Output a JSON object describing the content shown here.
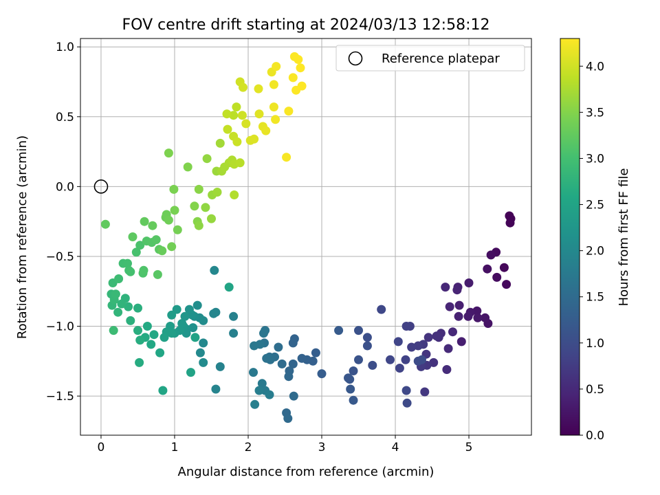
{
  "chart_data": {
    "type": "scatter",
    "title": "FOV centre drift starting at 2024/03/13 12:58:12",
    "xlabel": "Angular distance from reference (arcmin)",
    "ylabel": "Rotation from reference (arcmin)",
    "xlim": [
      -0.28,
      5.85
    ],
    "ylim": [
      -1.78,
      1.06
    ],
    "xticks": [
      0,
      1,
      2,
      3,
      4,
      5
    ],
    "yticks": [
      -1.5,
      -1.0,
      -0.5,
      0.0,
      0.5,
      1.0
    ],
    "xtick_labels": [
      "0",
      "1",
      "2",
      "3",
      "4",
      "5"
    ],
    "ytick_labels": [
      "−1.5",
      "−1.0",
      "−0.5",
      "0.0",
      "0.5",
      "1.0"
    ],
    "grid": true,
    "legend": {
      "position": "top-right",
      "label": "Reference platepar"
    },
    "reference_point": {
      "x": 0.0,
      "y": 0.0
    },
    "colorbar": {
      "label": "Hours from first FF file",
      "range": [
        0.0,
        4.3
      ],
      "ticks": [
        0.0,
        0.5,
        1.0,
        1.5,
        2.0,
        2.5,
        3.0,
        3.5,
        4.0
      ],
      "tick_labels": [
        "0.0",
        "0.5",
        "1.0",
        "1.5",
        "2.0",
        "2.5",
        "3.0",
        "3.5",
        "4.0"
      ],
      "colormap": [
        "#440154",
        "#482475",
        "#414487",
        "#355f8d",
        "#2a788e",
        "#21918c",
        "#22a884",
        "#44bf70",
        "#7ad151",
        "#bddf26",
        "#fde725"
      ]
    },
    "points": [
      [
        5.55,
        -0.21,
        0.02
      ],
      [
        5.57,
        -0.23,
        0.03
      ],
      [
        5.56,
        -0.26,
        0.04
      ],
      [
        5.48,
        -0.58,
        0.08
      ],
      [
        5.51,
        -0.7,
        0.1
      ],
      [
        5.37,
        -0.47,
        0.12
      ],
      [
        5.38,
        -0.65,
        0.14
      ],
      [
        5.3,
        -0.49,
        0.16
      ],
      [
        5.25,
        -0.59,
        0.18
      ],
      [
        5.26,
        -0.98,
        0.22
      ],
      [
        5.22,
        -0.94,
        0.24
      ],
      [
        5.11,
        -0.89,
        0.26
      ],
      [
        5.12,
        -0.94,
        0.28
      ],
      [
        5.02,
        -0.9,
        0.3
      ],
      [
        4.99,
        -0.93,
        0.32
      ],
      [
        5.0,
        -0.69,
        0.34
      ],
      [
        4.9,
        -1.11,
        0.36
      ],
      [
        4.87,
        -0.85,
        0.38
      ],
      [
        4.86,
        -0.93,
        0.4
      ],
      [
        4.85,
        -0.72,
        0.42
      ],
      [
        4.84,
        -0.74,
        0.44
      ],
      [
        4.74,
        -0.86,
        0.46
      ],
      [
        4.68,
        -0.72,
        0.48
      ],
      [
        4.78,
        -1.04,
        0.5
      ],
      [
        4.72,
        -1.16,
        0.52
      ],
      [
        4.7,
        -1.31,
        0.54
      ],
      [
        4.62,
        -1.05,
        0.56
      ],
      [
        4.59,
        -1.08,
        0.58
      ],
      [
        4.56,
        -1.07,
        0.6
      ],
      [
        4.52,
        -1.26,
        0.62
      ],
      [
        4.45,
        -1.08,
        0.64
      ],
      [
        4.42,
        -1.2,
        0.66
      ],
      [
        4.43,
        -1.28,
        0.68
      ],
      [
        4.4,
        -1.47,
        0.7
      ],
      [
        4.38,
        -1.13,
        0.72
      ],
      [
        4.35,
        -1.29,
        0.74
      ],
      [
        4.31,
        -1.14,
        0.76
      ],
      [
        4.22,
        -1.15,
        0.78
      ],
      [
        4.2,
        -1.0,
        0.8
      ],
      [
        4.15,
        -1.0,
        0.82
      ],
      [
        4.14,
        -1.24,
        0.84
      ],
      [
        4.06,
        -1.3,
        0.86
      ],
      [
        4.04,
        -1.11,
        0.88
      ],
      [
        3.93,
        -1.24,
        0.9
      ],
      [
        3.81,
        -0.88,
        0.92
      ],
      [
        4.15,
        -1.46,
        0.94
      ],
      [
        4.16,
        -1.55,
        0.96
      ],
      [
        4.31,
        -1.25,
        0.98
      ],
      [
        4.36,
        -1.24,
        1.0
      ],
      [
        3.69,
        -1.28,
        1.02
      ],
      [
        3.62,
        -1.08,
        1.04
      ],
      [
        3.62,
        -1.14,
        1.06
      ],
      [
        3.5,
        -1.03,
        1.08
      ],
      [
        3.5,
        -1.24,
        1.1
      ],
      [
        3.43,
        -1.32,
        1.12
      ],
      [
        3.38,
        -1.38,
        1.14
      ],
      [
        3.36,
        -1.37,
        1.16
      ],
      [
        3.39,
        -1.45,
        1.18
      ],
      [
        3.43,
        -1.53,
        1.2
      ],
      [
        3.23,
        -1.03,
        1.22
      ],
      [
        3.0,
        -1.34,
        1.26
      ],
      [
        2.92,
        -1.19,
        1.28
      ],
      [
        2.88,
        -1.25,
        1.3
      ],
      [
        2.8,
        -1.24,
        1.32
      ],
      [
        2.73,
        -1.23,
        1.34
      ],
      [
        2.63,
        -1.09,
        1.36
      ],
      [
        2.61,
        -1.12,
        1.38
      ],
      [
        2.61,
        -1.27,
        1.4
      ],
      [
        2.56,
        -1.32,
        1.42
      ],
      [
        2.55,
        -1.36,
        1.44
      ],
      [
        2.52,
        -1.62,
        1.46
      ],
      [
        2.54,
        -1.66,
        1.48
      ],
      [
        2.62,
        -1.5,
        1.5
      ],
      [
        2.46,
        -1.27,
        1.52
      ],
      [
        2.41,
        -1.15,
        1.54
      ],
      [
        2.36,
        -1.22,
        1.56
      ],
      [
        2.29,
        -1.22,
        1.58
      ],
      [
        2.3,
        -1.24,
        1.6
      ],
      [
        2.25,
        -1.23,
        1.62
      ],
      [
        2.22,
        -1.12,
        1.64
      ],
      [
        2.23,
        -1.03,
        1.66
      ],
      [
        2.21,
        -1.05,
        1.68
      ],
      [
        2.16,
        -1.13,
        1.7
      ],
      [
        2.08,
        -1.14,
        1.72
      ],
      [
        2.07,
        -1.33,
        1.74
      ],
      [
        2.19,
        -1.41,
        1.76
      ],
      [
        2.23,
        -1.46,
        1.78
      ],
      [
        2.29,
        -1.49,
        1.8
      ],
      [
        2.15,
        -1.46,
        1.82
      ],
      [
        2.09,
        -1.56,
        1.84
      ],
      [
        1.8,
        -1.05,
        1.86
      ],
      [
        1.8,
        -0.93,
        1.88
      ],
      [
        1.62,
        -1.29,
        1.9
      ],
      [
        1.56,
        -1.45,
        1.92
      ],
      [
        1.56,
        -0.9,
        1.94
      ],
      [
        1.53,
        -0.91,
        1.96
      ],
      [
        1.54,
        -0.6,
        1.98
      ],
      [
        1.39,
        -1.12,
        2.0
      ],
      [
        1.35,
        -1.19,
        2.02
      ],
      [
        1.39,
        -1.26,
        2.04
      ],
      [
        1.39,
        -0.96,
        2.06
      ],
      [
        1.34,
        -0.94,
        2.08
      ],
      [
        1.31,
        -0.85,
        2.1
      ],
      [
        1.27,
        -0.93,
        2.12
      ],
      [
        1.25,
        -1.01,
        2.14
      ],
      [
        1.24,
        -0.92,
        2.16
      ],
      [
        1.2,
        -0.88,
        2.18
      ],
      [
        1.16,
        -1.02,
        2.2
      ],
      [
        1.16,
        -1.05,
        2.22
      ],
      [
        1.14,
        -0.93,
        2.24
      ],
      [
        1.12,
        -1.0,
        2.26
      ],
      [
        1.1,
        -0.98,
        2.28
      ],
      [
        1.07,
        -1.03,
        2.3
      ],
      [
        1.03,
        -0.88,
        2.32
      ],
      [
        1.0,
        -1.05,
        2.34
      ],
      [
        0.96,
        -0.92,
        2.36
      ],
      [
        0.94,
        -1.0,
        2.38
      ],
      [
        0.96,
        -1.05,
        2.4
      ],
      [
        0.89,
        -1.04,
        2.42
      ],
      [
        0.86,
        -1.08,
        2.44
      ],
      [
        1.28,
        -1.08,
        2.46
      ],
      [
        1.22,
        -1.33,
        2.48
      ],
      [
        1.74,
        -0.72,
        2.5
      ],
      [
        0.84,
        -1.46,
        2.52
      ],
      [
        0.8,
        -1.19,
        2.54
      ],
      [
        0.72,
        -1.06,
        2.56
      ],
      [
        0.68,
        -1.13,
        2.58
      ],
      [
        0.63,
        -1.0,
        2.6
      ],
      [
        0.6,
        -1.08,
        2.62
      ],
      [
        0.52,
        -1.26,
        2.64
      ],
      [
        0.53,
        -1.1,
        2.66
      ],
      [
        0.5,
        -1.03,
        2.68
      ],
      [
        0.5,
        -0.87,
        2.7
      ],
      [
        0.4,
        -0.96,
        2.72
      ],
      [
        0.37,
        -0.86,
        2.74
      ],
      [
        0.33,
        -0.8,
        2.76
      ],
      [
        0.28,
        -0.84,
        2.78
      ],
      [
        0.23,
        -0.9,
        2.8
      ],
      [
        0.15,
        -0.85,
        2.82
      ],
      [
        0.14,
        -0.77,
        2.84
      ],
      [
        0.18,
        -0.81,
        2.86
      ],
      [
        0.2,
        -0.77,
        2.88
      ],
      [
        0.16,
        -0.69,
        2.9
      ],
      [
        0.17,
        -1.03,
        2.92
      ],
      [
        0.24,
        -0.66,
        2.94
      ],
      [
        0.3,
        -0.55,
        2.96
      ],
      [
        0.36,
        -0.55,
        2.98
      ],
      [
        0.38,
        -0.6,
        3.0
      ],
      [
        0.4,
        -0.61,
        3.02
      ],
      [
        0.48,
        -0.47,
        3.04
      ],
      [
        0.53,
        -0.42,
        3.06
      ],
      [
        0.57,
        -0.62,
        3.08
      ],
      [
        0.58,
        -0.6,
        3.1
      ],
      [
        0.62,
        -0.39,
        3.12
      ],
      [
        0.69,
        -0.4,
        3.14
      ],
      [
        0.75,
        -0.38,
        3.16
      ],
      [
        0.77,
        -0.63,
        3.18
      ],
      [
        0.79,
        -0.45,
        3.2
      ],
      [
        0.43,
        -0.36,
        3.22
      ],
      [
        0.06,
        -0.27,
        3.24
      ],
      [
        0.59,
        -0.25,
        3.26
      ],
      [
        0.7,
        -0.28,
        3.28
      ],
      [
        0.83,
        -0.46,
        3.3
      ],
      [
        0.88,
        -0.22,
        3.32
      ],
      [
        0.89,
        -0.2,
        3.34
      ],
      [
        0.92,
        -0.24,
        3.36
      ],
      [
        0.96,
        -0.43,
        3.38
      ],
      [
        1.04,
        -0.31,
        3.4
      ],
      [
        1.0,
        -0.17,
        3.42
      ],
      [
        0.99,
        -0.02,
        3.44
      ],
      [
        0.92,
        0.24,
        3.46
      ],
      [
        1.18,
        0.14,
        3.48
      ],
      [
        1.27,
        -0.14,
        3.5
      ],
      [
        1.31,
        -0.25,
        3.52
      ],
      [
        1.33,
        -0.02,
        3.54
      ],
      [
        1.33,
        -0.28,
        3.56
      ],
      [
        1.42,
        -0.15,
        3.58
      ],
      [
        1.44,
        0.2,
        3.6
      ],
      [
        1.5,
        -0.23,
        3.62
      ],
      [
        1.51,
        -0.06,
        3.64
      ],
      [
        1.57,
        0.11,
        3.66
      ],
      [
        1.58,
        -0.04,
        3.68
      ],
      [
        1.62,
        0.31,
        3.7
      ],
      [
        1.64,
        0.11,
        3.72
      ],
      [
        1.68,
        0.14,
        3.74
      ],
      [
        1.74,
        0.17,
        3.76
      ],
      [
        1.78,
        0.19,
        3.78
      ],
      [
        1.81,
        -0.06,
        3.8
      ],
      [
        1.81,
        0.16,
        3.82
      ],
      [
        1.89,
        0.17,
        3.84
      ],
      [
        1.8,
        0.51,
        3.86
      ],
      [
        1.84,
        0.57,
        3.88
      ],
      [
        1.71,
        0.52,
        3.9
      ],
      [
        1.72,
        0.41,
        3.92
      ],
      [
        1.8,
        0.36,
        3.94
      ],
      [
        1.85,
        0.32,
        3.96
      ],
      [
        1.92,
        0.51,
        3.98
      ],
      [
        1.89,
        0.75,
        4.0
      ],
      [
        1.93,
        0.71,
        4.02
      ],
      [
        1.97,
        0.45,
        4.04
      ],
      [
        2.03,
        0.33,
        4.06
      ],
      [
        2.08,
        0.34,
        4.08
      ],
      [
        2.15,
        0.52,
        4.1
      ],
      [
        2.14,
        0.7,
        4.12
      ],
      [
        2.2,
        0.43,
        4.14
      ],
      [
        2.24,
        0.4,
        4.16
      ],
      [
        2.32,
        0.82,
        4.18
      ],
      [
        2.35,
        0.57,
        4.2
      ],
      [
        2.37,
        0.48,
        4.22
      ],
      [
        2.38,
        0.86,
        4.24
      ],
      [
        2.52,
        0.21,
        4.26
      ],
      [
        2.55,
        0.54,
        4.27
      ],
      [
        2.61,
        0.78,
        4.28
      ],
      [
        2.63,
        0.93,
        4.29
      ],
      [
        2.65,
        0.69,
        4.29
      ],
      [
        2.68,
        0.91,
        4.3
      ],
      [
        2.71,
        0.85,
        4.3
      ],
      [
        2.73,
        0.72,
        4.3
      ],
      [
        2.35,
        0.73,
        4.22
      ]
    ]
  }
}
